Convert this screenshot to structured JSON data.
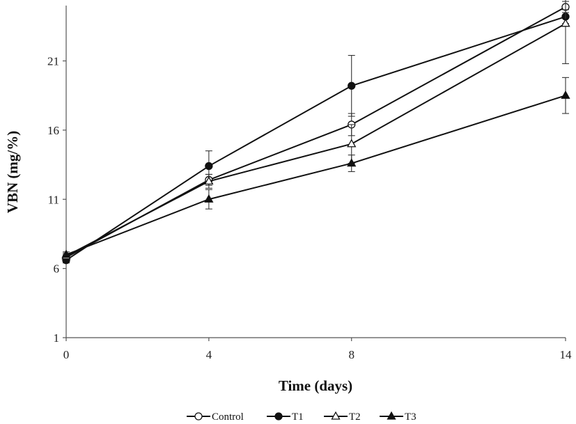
{
  "chart_data": {
    "type": "line",
    "xlabel": "Time (days)",
    "ylabel": "VBN (mg/%)",
    "x": [
      0,
      4,
      8,
      14
    ],
    "x_ticks": [
      "0",
      "4",
      "8",
      "14"
    ],
    "y_ticks": [
      "1",
      "6",
      "11",
      "16",
      "21"
    ],
    "ylim": [
      1,
      25
    ],
    "grid": false,
    "legend_position": "bottom",
    "series": [
      {
        "name": "Control",
        "marker": "open-circle",
        "values": [
          6.8,
          12.4,
          16.4,
          24.9
        ],
        "errors": [
          0.2,
          0.4,
          0.8,
          0.4
        ]
      },
      {
        "name": "T1",
        "marker": "filled-circle",
        "values": [
          6.6,
          13.4,
          19.2,
          24.2
        ],
        "errors": [
          0.2,
          1.1,
          2.2,
          0.5
        ]
      },
      {
        "name": "T2",
        "marker": "open-triangle",
        "values": [
          6.9,
          12.3,
          15.0,
          23.7
        ],
        "errors": [
          0.2,
          0.5,
          1.4,
          2.9
        ]
      },
      {
        "name": "T3",
        "marker": "filled-triangle",
        "values": [
          7.0,
          11.0,
          13.6,
          18.5
        ],
        "errors": [
          0.2,
          0.7,
          0.6,
          1.3
        ]
      }
    ]
  }
}
